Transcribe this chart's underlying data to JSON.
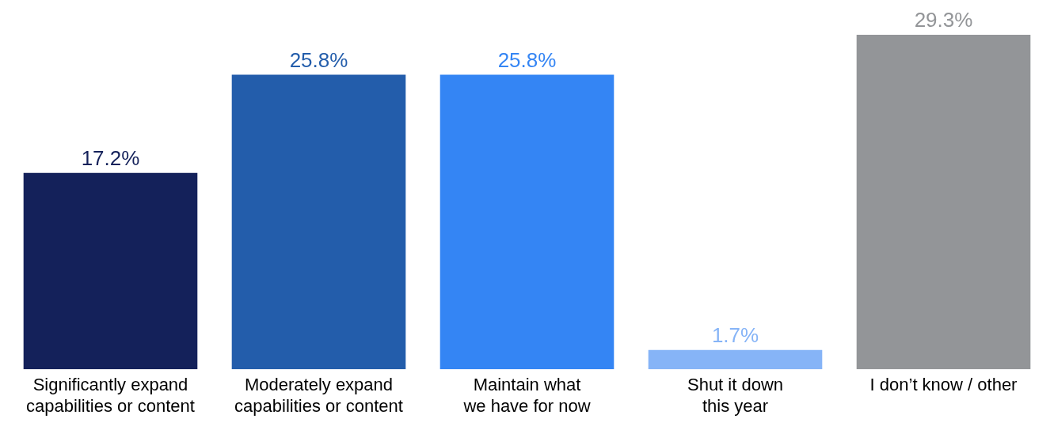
{
  "chart_data": {
    "type": "bar",
    "categories": [
      "Significantly expand capabilities or content",
      "Moderately expand capabilities or content",
      "Maintain what we have for now",
      "Shut it down this year",
      "I don’t know / other"
    ],
    "values": [
      17.2,
      25.8,
      25.8,
      1.7,
      29.3
    ],
    "colors": [
      "#14215a",
      "#235dab",
      "#3485f4",
      "#86b4f7",
      "#939598"
    ],
    "value_labels": [
      "17.2%",
      "25.8%",
      "25.8%",
      "1.7%",
      "29.3%"
    ],
    "grid": false,
    "legend": false
  }
}
